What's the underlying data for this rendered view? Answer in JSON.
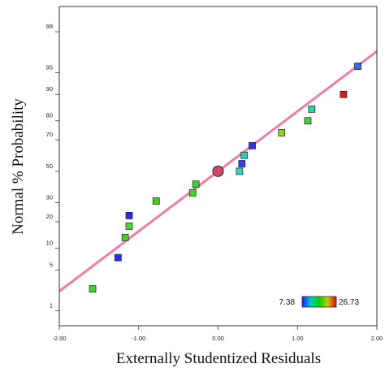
{
  "chart_data": {
    "type": "scatter",
    "title": "",
    "xlabel": "Externally Studentized Residuals",
    "ylabel": "Normal % Probability",
    "xlim": [
      -2.0,
      2.0
    ],
    "x_ticks": [
      {
        "value": -2.0,
        "label": "-2.00"
      },
      {
        "value": -1.0,
        "label": "-1.00"
      },
      {
        "value": 0.0,
        "label": "0.00"
      },
      {
        "value": 1.0,
        "label": "1.00"
      },
      {
        "value": 2.0,
        "label": "2.00"
      }
    ],
    "y_scale": "normal-probability",
    "ylim": [
      0.5,
      99.7
    ],
    "y_ticks": [
      {
        "value": 1,
        "label": "1"
      },
      {
        "value": 5,
        "label": "5"
      },
      {
        "value": 10,
        "label": "10"
      },
      {
        "value": 20,
        "label": "20"
      },
      {
        "value": 30,
        "label": "30"
      },
      {
        "value": 50,
        "label": "50"
      },
      {
        "value": 70,
        "label": "70"
      },
      {
        "value": 80,
        "label": "80"
      },
      {
        "value": 90,
        "label": "90"
      },
      {
        "value": 95,
        "label": "95"
      },
      {
        "value": 99,
        "label": "99"
      }
    ],
    "reference_line": {
      "slope": 1.0,
      "intercept": 0.0,
      "color": "#f07ca8"
    },
    "grid": false,
    "color_scale": {
      "min_label": "7.38",
      "max_label": "26.73",
      "stops": [
        "#1a1aff",
        "#00c8c8",
        "#00d200",
        "#c8c800",
        "#e00000"
      ]
    },
    "points": [
      {
        "x": -1.58,
        "y": 2.5,
        "color": "#36d636"
      },
      {
        "x": -1.26,
        "y": 7.5,
        "color": "#3030e0"
      },
      {
        "x": -1.17,
        "y": 13.5,
        "color": "#44d21e"
      },
      {
        "x": -1.12,
        "y": 18.0,
        "color": "#48d838"
      },
      {
        "x": -1.12,
        "y": 23.0,
        "color": "#2c2cd6"
      },
      {
        "x": -0.78,
        "y": 31.0,
        "color": "#4acc1c"
      },
      {
        "x": -0.32,
        "y": 36.0,
        "color": "#3ed230"
      },
      {
        "x": -0.28,
        "y": 41.5,
        "color": "#36d630"
      },
      {
        "x": 0.27,
        "y": 50.0,
        "color": "#28d6c8"
      },
      {
        "x": 0.3,
        "y": 55.0,
        "color": "#3244e0"
      },
      {
        "x": 0.33,
        "y": 60.5,
        "color": "#26d0c0"
      },
      {
        "x": 0.43,
        "y": 66.5,
        "color": "#3030e0"
      },
      {
        "x": 0.8,
        "y": 74.0,
        "color": "#8ed21e"
      },
      {
        "x": 1.13,
        "y": 80.0,
        "color": "#3cd23c"
      },
      {
        "x": 1.18,
        "y": 85.0,
        "color": "#2ad2b4"
      },
      {
        "x": 1.58,
        "y": 90.0,
        "color": "#e01818"
      },
      {
        "x": 1.76,
        "y": 96.0,
        "color": "#3a6ae0"
      }
    ],
    "highlight_point": {
      "x": 0.0,
      "y": 50.0,
      "color": "#d04a6a"
    }
  }
}
